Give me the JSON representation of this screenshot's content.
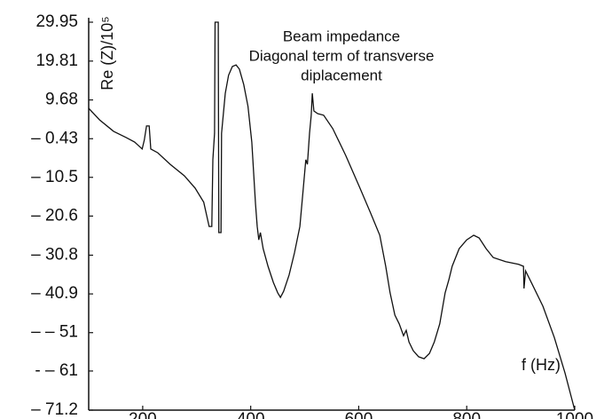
{
  "chart_data": {
    "type": "line",
    "title": [
      "Beam impedance",
      "Diagonal term of transverse",
      "diplacement"
    ],
    "ylabel": "Re (Z)/10⁵",
    "xlabel": "f (Hz)",
    "color": "#111111",
    "x": [
      100,
      120,
      146,
      169,
      185,
      199,
      203,
      207,
      212,
      215,
      228,
      251,
      277,
      297,
      313,
      323,
      328,
      330,
      333,
      334,
      340,
      341,
      345,
      346,
      353,
      359,
      366,
      373,
      379,
      387,
      395,
      402,
      409,
      412,
      415,
      418,
      423,
      432,
      442,
      450,
      455,
      461,
      471,
      481,
      491,
      497,
      502,
      505,
      509,
      512,
      514,
      517,
      524,
      535,
      552,
      576,
      601,
      622,
      639,
      650,
      658,
      667,
      675,
      683,
      688,
      693,
      701,
      711,
      721,
      731,
      740,
      750,
      760,
      767,
      773,
      786,
      800,
      813,
      823,
      836,
      849,
      872,
      896,
      905,
      906,
      909,
      921,
      941,
      962,
      982,
      1000
    ],
    "values": [
      7.5,
      4.5,
      1.5,
      -0.1,
      -1.3,
      -3.1,
      -0.8,
      2.9,
      2.9,
      -3.1,
      -4.1,
      -7.1,
      -10.1,
      -13.3,
      -17.0,
      -23.3,
      -23.3,
      -5.9,
      1.0,
      29.95,
      29.95,
      -24.9,
      -24.9,
      1.0,
      11.4,
      16.1,
      18.4,
      18.8,
      17.7,
      13.7,
      8.0,
      -1.3,
      -17.5,
      -23.3,
      -26.8,
      -24.9,
      -29.1,
      -33.7,
      -37.9,
      -40.6,
      -41.8,
      -40.2,
      -36.0,
      -30.2,
      -23.3,
      -14.0,
      -5.9,
      -7.1,
      1.0,
      5.7,
      11.4,
      6.8,
      6.1,
      5.7,
      2.2,
      -4.8,
      -12.9,
      -19.8,
      -25.6,
      -33.7,
      -40.6,
      -46.4,
      -48.7,
      -51.8,
      -50.4,
      -53.4,
      -55.7,
      -57.3,
      -57.8,
      -56.4,
      -53.4,
      -48.7,
      -40.6,
      -37.2,
      -33.7,
      -29.1,
      -26.8,
      -25.6,
      -26.3,
      -29.1,
      -31.4,
      -32.5,
      -33.2,
      -33.7,
      -39.5,
      -34.9,
      -38.3,
      -44.1,
      -52.2,
      -61.5,
      -71.2
    ],
    "xlim": [
      100,
      1000
    ],
    "xticks": [
      200,
      400,
      600,
      800,
      1000
    ],
    "ylim": [
      -71.2,
      29.95
    ],
    "yticks": [
      29.95,
      19.81,
      9.68,
      {
        "value": -0.43,
        "label": "– 0.43"
      },
      {
        "value": -10.5,
        "label": "– 10.5"
      },
      {
        "value": -20.6,
        "label": "– 20.6"
      },
      {
        "value": -30.8,
        "label": "– 30.8"
      },
      {
        "value": -40.9,
        "label": "– 40.9"
      },
      {
        "value": -51,
        "label": "– – 51"
      },
      {
        "value": -61,
        "label": "- – 61"
      },
      {
        "value": -71.2,
        "label": "– 71.2"
      }
    ]
  }
}
